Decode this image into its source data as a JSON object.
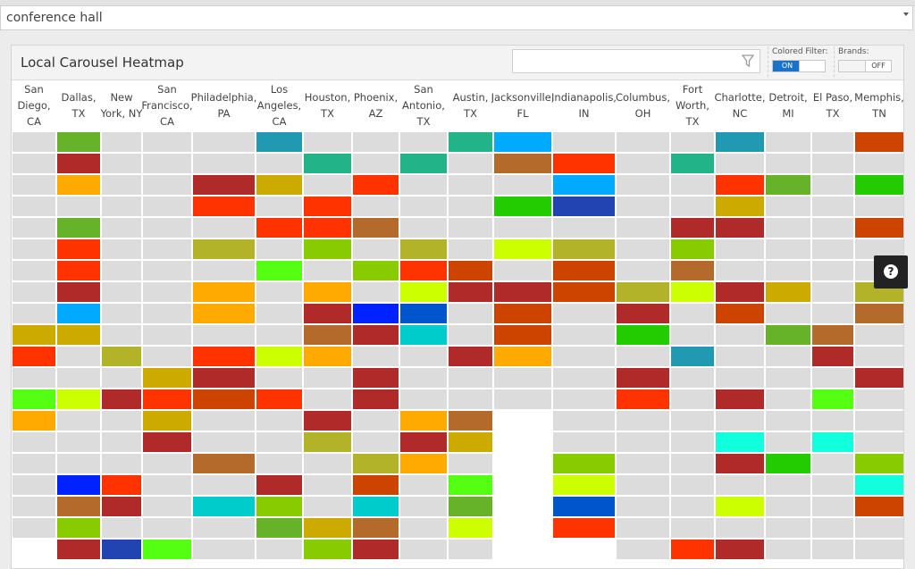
{
  "search": {
    "value": "conference hall"
  },
  "panel": {
    "title": "Local Carousel Heatmap",
    "filter_placeholder": "",
    "colored_filter": {
      "label": "Colored Filter:",
      "on": "ON",
      "off": ""
    },
    "brands": {
      "label": "Brands:",
      "on": "",
      "off": "OFF"
    }
  },
  "cities": [
    "San Diego, CA",
    "Dallas, TX",
    "New York, NY",
    "San Francisco, CA",
    "Philadelphia, PA",
    "Los Angeles, CA",
    "Houston, TX",
    "Phoenix, AZ",
    "San Antonio, TX",
    "Austin, TX",
    "Jacksonville, FL",
    "Indianapolis, IN",
    "Columbus, OH",
    "Fort Worth, TX",
    "Charlotte, NC",
    "Detroit, MI",
    "El Paso, TX",
    "Memphis, TN"
  ],
  "colors": {
    "empty": "#dcdcdc",
    "dk_red": "#b02a2a",
    "red": "#ff3300",
    "orange_red": "#cc4400",
    "brown": "#b36a2a",
    "orange": "#ffaa00",
    "gold": "#ccaa00",
    "olive": "#b3b32a",
    "yellow_green": "#ccff00",
    "lime": "#88cc00",
    "green": "#22cc00",
    "grass": "#66b32a",
    "bright_green": "#55ff11",
    "teal": "#22b388",
    "cyan": "#00cccc",
    "aqua": "#11ffdd",
    "steel": "#2299b3",
    "sky": "#00aaff",
    "blue": "#0055cc",
    "royal": "#2244b3",
    "bright_blue": "#0022ff"
  },
  "grid": [
    [
      "empty",
      "grass",
      "empty",
      "empty",
      "empty",
      "steel",
      "empty",
      "empty",
      "empty",
      "teal",
      "sky",
      "empty",
      "empty",
      "empty",
      "steel",
      "empty",
      "empty",
      "orange_red"
    ],
    [
      "empty",
      "dk_red",
      "empty",
      "empty",
      "empty",
      "empty",
      "teal",
      "empty",
      "teal",
      "empty",
      "brown",
      "red",
      "empty",
      "teal",
      "empty",
      "empty",
      "empty",
      "empty"
    ],
    [
      "empty",
      "orange",
      "empty",
      "empty",
      "dk_red",
      "gold",
      "empty",
      "red",
      "empty",
      "empty",
      "empty",
      "sky",
      "empty",
      "empty",
      "red",
      "grass",
      "empty",
      "green"
    ],
    [
      "empty",
      "empty",
      "empty",
      "empty",
      "red",
      "empty",
      "red",
      "empty",
      "empty",
      "empty",
      "green",
      "royal",
      "empty",
      "empty",
      "gold",
      "empty",
      "empty",
      "empty"
    ],
    [
      "empty",
      "grass",
      "empty",
      "empty",
      "empty",
      "red",
      "red",
      "brown",
      "empty",
      "empty",
      "empty",
      "empty",
      "empty",
      "dk_red",
      "dk_red",
      "empty",
      "empty",
      "orange_red"
    ],
    [
      "empty",
      "red",
      "empty",
      "empty",
      "olive",
      "empty",
      "lime",
      "empty",
      "olive",
      "empty",
      "yellow_green",
      "olive",
      "empty",
      "lime",
      "empty",
      "empty",
      "empty",
      "empty"
    ],
    [
      "empty",
      "red",
      "empty",
      "empty",
      "empty",
      "bright_green",
      "empty",
      "lime",
      "red",
      "orange_red",
      "empty",
      "orange_red",
      "empty",
      "brown",
      "empty",
      "empty",
      "empty",
      "empty"
    ],
    [
      "empty",
      "dk_red",
      "empty",
      "empty",
      "orange",
      "empty",
      "orange",
      "empty",
      "yellow_green",
      "dk_red",
      "dk_red",
      "orange_red",
      "olive",
      "yellow_green",
      "dk_red",
      "gold",
      "empty",
      "olive"
    ],
    [
      "empty",
      "sky",
      "empty",
      "empty",
      "orange",
      "empty",
      "dk_red",
      "bright_blue",
      "blue",
      "empty",
      "orange_red",
      "empty",
      "dk_red",
      "empty",
      "orange_red",
      "empty",
      "empty",
      "brown"
    ],
    [
      "gold",
      "gold",
      "empty",
      "empty",
      "empty",
      "empty",
      "brown",
      "dk_red",
      "cyan",
      "empty",
      "orange_red",
      "empty",
      "green",
      "empty",
      "empty",
      "grass",
      "brown",
      "empty"
    ],
    [
      "red",
      "empty",
      "olive",
      "empty",
      "red",
      "yellow_green",
      "orange",
      "empty",
      "empty",
      "dk_red",
      "orange",
      "empty",
      "empty",
      "steel",
      "empty",
      "empty",
      "dk_red",
      "empty"
    ],
    [
      "empty",
      "empty",
      "empty",
      "gold",
      "dk_red",
      "empty",
      "empty",
      "dk_red",
      "empty",
      "empty",
      "empty",
      "empty",
      "dk_red",
      "empty",
      "empty",
      "empty",
      "empty",
      "dk_red"
    ],
    [
      "bright_green",
      "yellow_green",
      "dk_red",
      "red",
      "orange_red",
      "red",
      "empty",
      "dk_red",
      "empty",
      "empty",
      "empty",
      "empty",
      "red",
      "empty",
      "dk_red",
      "empty",
      "bright_green",
      "empty"
    ],
    [
      "orange",
      "empty",
      "empty",
      "gold",
      "empty",
      "empty",
      "dk_red",
      "empty",
      "orange",
      "brown",
      "none",
      "empty",
      "empty",
      "empty",
      "empty",
      "empty",
      "empty",
      "empty"
    ],
    [
      "empty",
      "empty",
      "empty",
      "dk_red",
      "empty",
      "empty",
      "olive",
      "empty",
      "dk_red",
      "gold",
      "none",
      "empty",
      "empty",
      "empty",
      "aqua",
      "empty",
      "aqua",
      "empty"
    ],
    [
      "empty",
      "empty",
      "empty",
      "empty",
      "brown",
      "empty",
      "empty",
      "olive",
      "orange",
      "empty",
      "none",
      "lime",
      "empty",
      "empty",
      "dk_red",
      "green",
      "empty",
      "lime"
    ],
    [
      "empty",
      "bright_blue",
      "red",
      "empty",
      "empty",
      "dk_red",
      "empty",
      "orange_red",
      "empty",
      "bright_green",
      "none",
      "yellow_green",
      "empty",
      "empty",
      "empty",
      "empty",
      "empty",
      "aqua"
    ],
    [
      "empty",
      "brown",
      "dk_red",
      "empty",
      "cyan",
      "lime",
      "empty",
      "cyan",
      "empty",
      "grass",
      "none",
      "blue",
      "empty",
      "empty",
      "yellow_green",
      "empty",
      "empty",
      "orange_red"
    ],
    [
      "empty",
      "lime",
      "empty",
      "empty",
      "empty",
      "grass",
      "gold",
      "brown",
      "empty",
      "yellow_green",
      "none",
      "red",
      "empty",
      "empty",
      "empty",
      "empty",
      "empty",
      "empty"
    ],
    [
      "none",
      "dk_red",
      "royal",
      "bright_green",
      "empty",
      "empty",
      "lime",
      "dk_red",
      "empty",
      "empty",
      "none",
      "none",
      "empty",
      "red",
      "dk_red",
      "empty",
      "empty",
      "empty"
    ]
  ],
  "help": {
    "label": "?"
  }
}
